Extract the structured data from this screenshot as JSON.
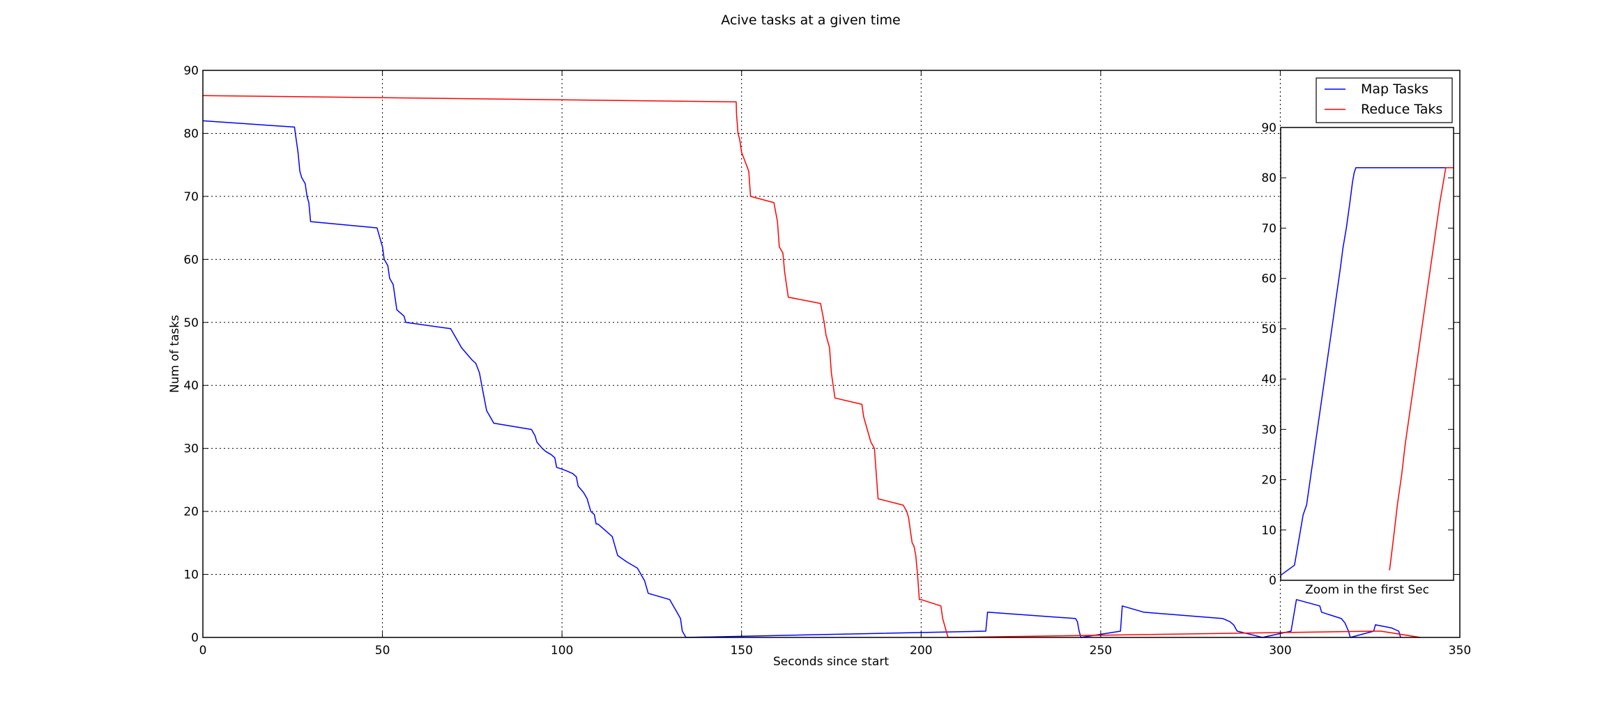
{
  "chart_data": [
    {
      "type": "line",
      "title": "Acive tasks at a given time",
      "xlabel": "Seconds since start",
      "ylabel": "Num of tasks",
      "xlim": [
        0,
        350
      ],
      "ylim": [
        0,
        90
      ],
      "xticks": [
        0,
        50,
        100,
        150,
        200,
        250,
        300,
        350
      ],
      "yticks": [
        0,
        10,
        20,
        30,
        40,
        50,
        60,
        70,
        80,
        90
      ],
      "grid": true,
      "legend": "top-right",
      "series": [
        {
          "name": "Map Tasks",
          "color": "#0000ff",
          "points": [
            [
              0,
              82
            ],
            [
              25.5,
              81
            ],
            [
              26,
              79
            ],
            [
              26.5,
              77
            ],
            [
              27,
              74
            ],
            [
              27.5,
              73
            ],
            [
              28.5,
              72
            ],
            [
              29,
              70
            ],
            [
              29.5,
              69
            ],
            [
              30,
              66
            ],
            [
              48.5,
              65
            ],
            [
              49,
              64
            ],
            [
              50,
              62
            ],
            [
              50.5,
              60
            ],
            [
              51.5,
              59
            ],
            [
              52,
              57
            ],
            [
              53,
              56
            ],
            [
              54,
              52
            ],
            [
              56,
              51
            ],
            [
              56.5,
              50
            ],
            [
              69,
              49
            ],
            [
              70,
              48
            ],
            [
              71,
              47
            ],
            [
              72,
              46
            ],
            [
              73.5,
              45
            ],
            [
              75,
              44
            ],
            [
              76,
              43.5
            ],
            [
              77,
              42
            ],
            [
              78,
              39
            ],
            [
              79,
              36
            ],
            [
              81,
              34
            ],
            [
              91.5,
              33
            ],
            [
              92.5,
              32
            ],
            [
              93,
              31
            ],
            [
              94.5,
              30
            ],
            [
              95.5,
              29.5
            ],
            [
              97,
              29
            ],
            [
              98,
              28.5
            ],
            [
              98.5,
              27
            ],
            [
              101,
              26.5
            ],
            [
              103,
              26
            ],
            [
              104,
              25.5
            ],
            [
              104.5,
              24
            ],
            [
              106,
              23
            ],
            [
              107,
              22
            ],
            [
              108,
              20
            ],
            [
              109,
              19.5
            ],
            [
              109.5,
              18
            ],
            [
              110,
              18
            ],
            [
              112,
              17
            ],
            [
              114,
              16
            ],
            [
              114.5,
              15
            ],
            [
              115.5,
              13
            ],
            [
              118,
              12
            ],
            [
              121,
              11
            ],
            [
              122,
              10
            ],
            [
              123,
              9
            ],
            [
              123.5,
              8
            ],
            [
              124,
              7
            ],
            [
              130,
              6
            ],
            [
              131,
              5
            ],
            [
              132,
              4
            ],
            [
              133,
              3
            ],
            [
              133.5,
              1
            ],
            [
              134,
              0.5
            ],
            [
              134.5,
              0
            ],
            [
              218,
              1
            ],
            [
              218.5,
              4
            ],
            [
              243,
              3
            ],
            [
              243.5,
              2.5
            ],
            [
              244,
              1
            ],
            [
              244.5,
              0
            ],
            [
              255.5,
              1
            ],
            [
              256,
              5
            ],
            [
              262,
              4
            ],
            [
              284,
              3
            ],
            [
              286,
              2.5
            ],
            [
              287,
              2
            ],
            [
              288,
              1
            ],
            [
              293,
              0.3
            ],
            [
              295,
              0
            ],
            [
              303,
              1
            ],
            [
              304.5,
              6
            ],
            [
              311,
              5
            ],
            [
              311.5,
              4
            ],
            [
              317,
              3
            ],
            [
              318,
              2.3
            ],
            [
              319,
              1
            ],
            [
              319.5,
              0
            ],
            [
              326,
              1
            ],
            [
              326.5,
              2
            ],
            [
              331,
              1.5
            ],
            [
              333,
              1
            ],
            [
              333.5,
              0
            ]
          ]
        },
        {
          "name": "Reduce Taks",
          "color": "#ff0000",
          "points": [
            [
              0,
              86
            ],
            [
              148.5,
              85
            ],
            [
              148.6,
              83
            ],
            [
              149,
              80
            ],
            [
              149.5,
              79
            ],
            [
              150,
              77
            ],
            [
              151,
              75.5
            ],
            [
              152,
              74
            ],
            [
              152.5,
              70
            ],
            [
              159,
              69
            ],
            [
              160,
              66
            ],
            [
              160.5,
              62
            ],
            [
              161.5,
              61
            ],
            [
              162,
              58
            ],
            [
              163,
              54
            ],
            [
              172,
              53
            ],
            [
              173,
              50
            ],
            [
              173.5,
              48
            ],
            [
              174.5,
              46
            ],
            [
              175,
              42
            ],
            [
              176,
              38
            ],
            [
              183.5,
              37
            ],
            [
              184,
              35
            ],
            [
              185,
              33
            ],
            [
              186,
              31
            ],
            [
              187,
              30
            ],
            [
              187.5,
              26
            ],
            [
              188,
              22
            ],
            [
              195,
              21
            ],
            [
              196,
              20
            ],
            [
              196.5,
              19
            ],
            [
              197,
              17
            ],
            [
              197.5,
              15
            ],
            [
              198,
              14.5
            ],
            [
              198.5,
              13
            ],
            [
              199,
              10
            ],
            [
              199.5,
              6
            ],
            [
              200,
              6
            ],
            [
              205.5,
              5
            ],
            [
              206,
              3
            ],
            [
              207,
              1
            ],
            [
              207.5,
              0
            ],
            [
              326,
              1
            ],
            [
              328,
              1
            ],
            [
              339,
              0
            ]
          ]
        }
      ]
    },
    {
      "type": "line",
      "title": "",
      "xlabel": "Zoom in the first Sec",
      "ylim": [
        0,
        90
      ],
      "yticks": [
        0,
        10,
        20,
        30,
        40,
        50,
        60,
        70,
        80,
        90
      ],
      "xticks": [],
      "grid": false,
      "series": [
        {
          "name": "Map Tasks",
          "color": "#0000ff",
          "points": [
            [
              0,
              1
            ],
            [
              0.08,
              3
            ],
            [
              0.1,
              7
            ],
            [
              0.13,
              13
            ],
            [
              0.15,
              15
            ],
            [
              0.175,
              21
            ],
            [
              0.2,
              27
            ],
            [
              0.225,
              33
            ],
            [
              0.25,
              39
            ],
            [
              0.275,
              45
            ],
            [
              0.3,
              51
            ],
            [
              0.32,
              56
            ],
            [
              0.345,
              62
            ],
            [
              0.36,
              66
            ],
            [
              0.38,
              70
            ],
            [
              0.4,
              75
            ],
            [
              0.415,
              79
            ],
            [
              0.425,
              81
            ],
            [
              0.435,
              82
            ],
            [
              1,
              82
            ]
          ]
        },
        {
          "name": "Reduce Taks",
          "color": "#ff0000",
          "points": [
            [
              0.63,
              2
            ],
            [
              0.655,
              9
            ],
            [
              0.675,
              15
            ],
            [
              0.7,
              21
            ],
            [
              0.72,
              27
            ],
            [
              0.745,
              33
            ],
            [
              0.77,
              39
            ],
            [
              0.795,
              45
            ],
            [
              0.82,
              51
            ],
            [
              0.845,
              57
            ],
            [
              0.87,
              63
            ],
            [
              0.895,
              69
            ],
            [
              0.92,
              75
            ],
            [
              0.945,
              80
            ],
            [
              0.955,
              82
            ],
            [
              1,
              82
            ]
          ]
        }
      ]
    }
  ],
  "icons": {
    "legend_line_icon": "legend-line"
  }
}
